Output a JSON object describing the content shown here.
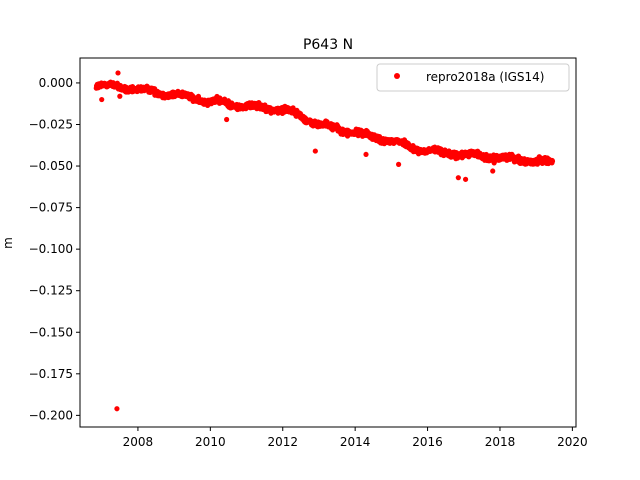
{
  "chart_data": {
    "type": "scatter",
    "title": "P643 N",
    "xlabel": "",
    "ylabel": "m",
    "xlim": [
      2006.4,
      2020.1
    ],
    "ylim": [
      -0.207,
      0.015
    ],
    "x_ticks": [
      2008,
      2010,
      2012,
      2014,
      2016,
      2018,
      2020
    ],
    "y_ticks": [
      0.0,
      -0.025,
      -0.05,
      -0.075,
      -0.1,
      -0.125,
      -0.15,
      -0.175,
      -0.2
    ],
    "x_tick_labels": [
      "2008",
      "2010",
      "2012",
      "2014",
      "2016",
      "2018",
      "2020"
    ],
    "y_tick_labels": [
      "0.000",
      "−0.025",
      "−0.050",
      "−0.075",
      "−0.100",
      "−0.125",
      "−0.150",
      "−0.175",
      "−0.200"
    ],
    "grid": false,
    "legend_position": "top-right",
    "series": [
      {
        "name": "repro2018a (IGS14)",
        "color": "#ff0000",
        "marker": "circle",
        "trend": [
          {
            "x": 2006.85,
            "y": -0.001
          },
          {
            "x": 2008.0,
            "y": -0.004
          },
          {
            "x": 2009.0,
            "y": -0.007
          },
          {
            "x": 2010.0,
            "y": -0.011
          },
          {
            "x": 2011.0,
            "y": -0.014
          },
          {
            "x": 2012.0,
            "y": -0.016
          },
          {
            "x": 2012.5,
            "y": -0.02
          },
          {
            "x": 2013.0,
            "y": -0.025
          },
          {
            "x": 2014.0,
            "y": -0.03
          },
          {
            "x": 2015.0,
            "y": -0.035
          },
          {
            "x": 2016.0,
            "y": -0.041
          },
          {
            "x": 2017.0,
            "y": -0.043
          },
          {
            "x": 2018.0,
            "y": -0.045
          },
          {
            "x": 2019.45,
            "y": -0.048
          }
        ],
        "outliers": [
          {
            "x": 2007.45,
            "y": 0.006
          },
          {
            "x": 2007.42,
            "y": -0.196
          },
          {
            "x": 2012.9,
            "y": -0.041
          },
          {
            "x": 2014.3,
            "y": -0.043
          },
          {
            "x": 2015.2,
            "y": -0.049
          },
          {
            "x": 2016.85,
            "y": -0.057
          },
          {
            "x": 2017.05,
            "y": -0.058
          },
          {
            "x": 2017.8,
            "y": -0.053
          },
          {
            "x": 2010.45,
            "y": -0.022
          },
          {
            "x": 2007.0,
            "y": -0.01
          },
          {
            "x": 2007.5,
            "y": -0.008
          }
        ]
      }
    ]
  }
}
